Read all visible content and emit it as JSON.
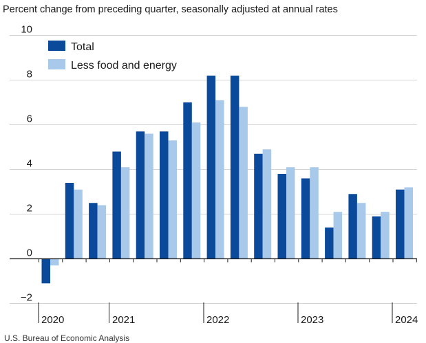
{
  "chart_data": {
    "type": "bar",
    "subtitle": "Percent change from preceding quarter, seasonally adjusted at annual rates",
    "source": "U.S. Bureau of Economic Analysis",
    "ylim": [
      -2,
      10
    ],
    "yticks": [
      -2,
      0,
      2,
      4,
      6,
      8,
      10
    ],
    "ytick_labels": [
      "−2",
      "0",
      "2",
      "4",
      "6",
      "8",
      "10"
    ],
    "grid": true,
    "legend_position": "top-left",
    "year_labels": [
      "2020",
      "2021",
      "2022",
      "2023",
      "2024"
    ],
    "categories": [
      "2020 Q3",
      "2020 Q4",
      "2021 Q1",
      "2021 Q2",
      "2021 Q3",
      "2021 Q4",
      "2022 Q1",
      "2022 Q2",
      "2022 Q3",
      "2022 Q4",
      "2023 Q1",
      "2023 Q2",
      "2023 Q3",
      "2023 Q4",
      "2024 Q1",
      "2024 Q2"
    ],
    "series": [
      {
        "name": "Total",
        "color": "#0b4a9b",
        "values": [
          -1.1,
          3.4,
          2.5,
          4.8,
          5.7,
          5.7,
          7.0,
          8.2,
          8.2,
          4.7,
          3.8,
          3.6,
          1.4,
          2.9,
          1.9,
          3.1
        ]
      },
      {
        "name": "Less food and energy",
        "color": "#a9c9ea",
        "values": [
          -0.3,
          3.1,
          2.4,
          4.1,
          5.6,
          5.3,
          6.1,
          7.1,
          6.8,
          4.9,
          4.1,
          4.1,
          2.1,
          2.5,
          2.1,
          3.2
        ]
      }
    ]
  }
}
